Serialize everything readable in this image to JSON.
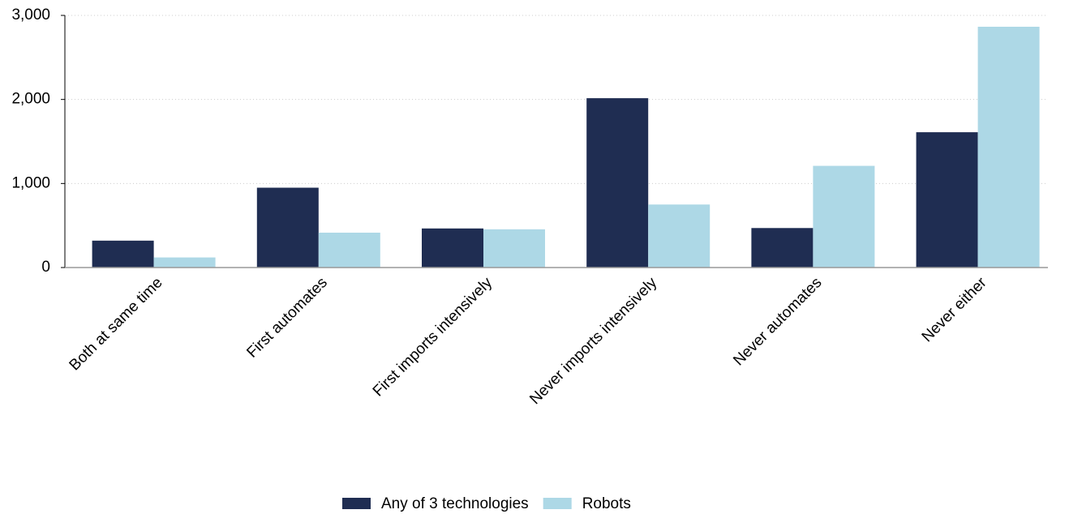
{
  "chart_data": {
    "type": "bar",
    "categories": [
      "Both at same time",
      "First automates",
      "First imports intensively",
      "Never imports intensively",
      "Never automates",
      "Never either"
    ],
    "series": [
      {
        "name": "Any of 3 technologies",
        "color": "#1f2d52",
        "values": [
          320,
          950,
          465,
          2015,
          470,
          1610
        ]
      },
      {
        "name": "Robots",
        "color": "#add8e6",
        "values": [
          120,
          415,
          455,
          750,
          1210,
          2865
        ]
      }
    ],
    "ylim": [
      0,
      3000
    ],
    "yticks": [
      0,
      {
        "value": 1000,
        "label": "1,000"
      },
      {
        "value": 2000,
        "label": "2,000"
      },
      {
        "value": 3000,
        "label": "3,000"
      }
    ],
    "grid": true
  }
}
